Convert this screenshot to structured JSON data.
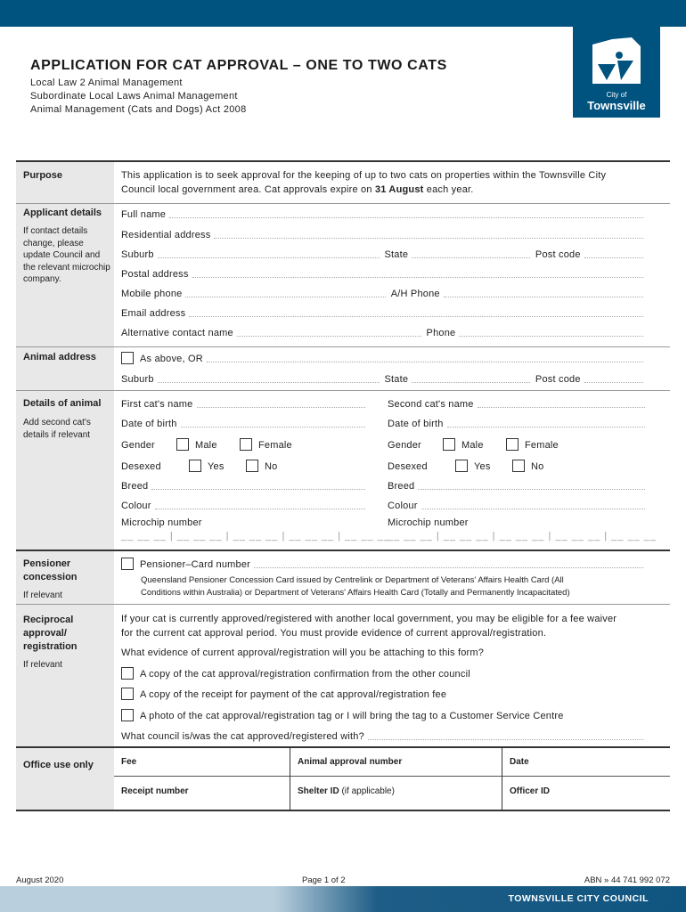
{
  "header": {
    "title": "APPLICATION FOR CAT APPROVAL – ONE TO TWO CATS",
    "subtitles": [
      "Local Law 2 Animal Management",
      "Subordinate Local Laws Animal Management",
      "Animal Management (Cats and Dogs) Act 2008"
    ],
    "logo_text": "City of Townsville",
    "brand_color": "#00527f"
  },
  "purpose": {
    "label": "Purpose",
    "text1": "This application is to seek approval for the keeping of up to two cats on properties within the Townsville City",
    "text2a": "Council local government area.  Cat approvals expire on ",
    "text2b": "31 August",
    "text2c": " each year."
  },
  "applicant": {
    "label": "Applicant details",
    "note": "If contact details change, please update Council and the relevant microchip company.",
    "full_name": "Full name",
    "residential": "Residential address",
    "suburb": "Suburb",
    "state": "State",
    "postcode": "Post code",
    "postal": "Postal address",
    "mobile": "Mobile phone",
    "ah_phone": "A/H Phone",
    "email": "Email address",
    "alt_contact": "Alternative contact name",
    "phone": "Phone"
  },
  "animal_address": {
    "label": "Animal address",
    "as_above": "As above, OR",
    "suburb": "Suburb",
    "state": "State",
    "postcode": "Post code"
  },
  "animal": {
    "label": "Details of animal",
    "note": "Add second cat's details if relevant",
    "first_name": "First cat's name",
    "second_name": "Second cat's name",
    "dob": "Date of birth",
    "gender": "Gender",
    "male": "Male",
    "female": "Female",
    "desexed": "Desexed",
    "yes": "Yes",
    "no": "No",
    "breed": "Breed",
    "colour": "Colour",
    "microchip": "Microchip number",
    "chip_mask": "__ __ __ | __ __ __ | __ __ __ | __ __ __ | __ __ __"
  },
  "pensioner": {
    "label": "Pensioner concession",
    "note": "If relevant",
    "card": "Pensioner–Card number",
    "text1": "Queensland Pensioner Concession Card issued by Centrelink or Department of Veterans' Affairs Health Card (All",
    "text2": "Conditions within Australia) or Department of Veterans' Affairs Health Card (Totally and Permanently Incapacitated)"
  },
  "reciprocal": {
    "label": "Reciprocal approval/ registration",
    "note": "If relevant",
    "text1": "If your cat is currently approved/registered with another local government, you may be eligible for a fee waiver",
    "text2": "for the current cat approval period. You must provide evidence of current approval/registration.",
    "question": "What evidence of current approval/registration will you be attaching to this form?",
    "options": [
      "A copy of the cat approval/registration confirmation from the other council",
      "A copy of the receipt for payment of the cat approval/registration fee",
      "A photo of the cat approval/registration tag or I will bring the tag to a Customer Service Centre"
    ],
    "council": "What council is/was the cat approved/registered with?"
  },
  "office": {
    "label": "Office use only",
    "fee": "Fee",
    "approval_number": "Animal approval number",
    "date": "Date",
    "receipt": "Receipt number",
    "shelter": "Shelter ID",
    "shelter_note": " (if applicable)",
    "officer": "Officer ID"
  },
  "footer": {
    "date": "August 2020",
    "page": "Page 1 of 2",
    "abn": "ABN » 44 741 992 072",
    "council": "TOWNSVILLE CITY COUNCIL"
  }
}
